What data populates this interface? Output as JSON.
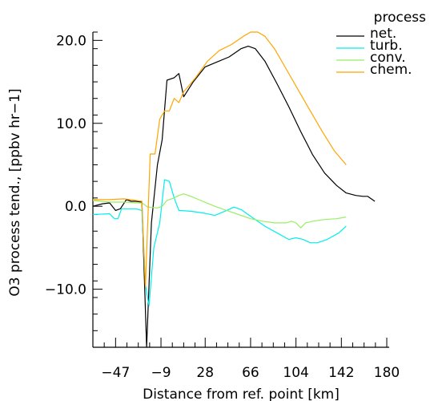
{
  "chart_data": {
    "type": "line",
    "xlabel": "Distance from ref. point [km]",
    "ylabel": "O3 process tend.,   [ppbv hr−1]",
    "xlim": [
      -66,
      182
    ],
    "ylim": [
      -17,
      21
    ],
    "xticks": [
      -47,
      -9,
      28,
      66,
      104,
      142,
      180
    ],
    "yticks": [
      20.0,
      10.0,
      0.0,
      -10.0
    ],
    "ytick_labels": [
      "20.0",
      "10.0",
      "0.0",
      "−10.0"
    ],
    "legend_title": "process",
    "legend_position": "top-right",
    "series": [
      {
        "name": "net.",
        "color": "#000000",
        "points": [
          [
            -66,
            0.0
          ],
          [
            -58,
            0.3
          ],
          [
            -52,
            0.4
          ],
          [
            -47,
            -0.5
          ],
          [
            -43,
            -0.3
          ],
          [
            -38,
            0.8
          ],
          [
            -34,
            0.6
          ],
          [
            -30,
            0.6
          ],
          [
            -25,
            0.5
          ],
          [
            -21,
            -17.0
          ],
          [
            -17,
            -2.0
          ],
          [
            -12,
            5.0
          ],
          [
            -8,
            8.0
          ],
          [
            -4,
            15.2
          ],
          [
            2,
            15.5
          ],
          [
            6,
            16.0
          ],
          [
            10,
            13.2
          ],
          [
            18,
            15.0
          ],
          [
            28,
            16.8
          ],
          [
            38,
            17.4
          ],
          [
            48,
            18.0
          ],
          [
            58,
            19.0
          ],
          [
            64,
            19.3
          ],
          [
            70,
            19.0
          ],
          [
            78,
            17.5
          ],
          [
            88,
            14.8
          ],
          [
            98,
            12.0
          ],
          [
            108,
            9.0
          ],
          [
            118,
            6.2
          ],
          [
            128,
            4.0
          ],
          [
            138,
            2.5
          ],
          [
            146,
            1.6
          ],
          [
            154,
            1.3
          ],
          [
            160,
            1.2
          ],
          [
            164,
            1.2
          ],
          [
            170,
            0.6
          ]
        ]
      },
      {
        "name": "turb.",
        "color": "#00eeee",
        "points": [
          [
            -66,
            -1.0
          ],
          [
            -52,
            -0.9
          ],
          [
            -48,
            -1.5
          ],
          [
            -45,
            -1.5
          ],
          [
            -42,
            -0.3
          ],
          [
            -38,
            -0.3
          ],
          [
            -30,
            -0.3
          ],
          [
            -25,
            -0.5
          ],
          [
            -22,
            -9.5
          ],
          [
            -19,
            -12.0
          ],
          [
            -15,
            -5.0
          ],
          [
            -10,
            -2.0
          ],
          [
            -6,
            3.2
          ],
          [
            -2,
            3.0
          ],
          [
            2,
            1.0
          ],
          [
            6,
            -0.5
          ],
          [
            16,
            -0.6
          ],
          [
            26,
            -0.8
          ],
          [
            36,
            -1.1
          ],
          [
            46,
            -0.5
          ],
          [
            52,
            -0.1
          ],
          [
            58,
            -0.4
          ],
          [
            68,
            -1.4
          ],
          [
            78,
            -2.4
          ],
          [
            88,
            -3.2
          ],
          [
            98,
            -4.0
          ],
          [
            104,
            -3.8
          ],
          [
            110,
            -4.0
          ],
          [
            116,
            -4.4
          ],
          [
            122,
            -4.4
          ],
          [
            130,
            -4.0
          ],
          [
            140,
            -3.2
          ],
          [
            146,
            -2.4
          ]
        ]
      },
      {
        "name": "conv.",
        "color": "#99ee66",
        "points": [
          [
            -66,
            0.7
          ],
          [
            -52,
            0.5
          ],
          [
            -40,
            0.5
          ],
          [
            -30,
            0.4
          ],
          [
            -25,
            0.4
          ],
          [
            -20,
            -0.1
          ],
          [
            -12,
            -0.2
          ],
          [
            -8,
            0.0
          ],
          [
            -4,
            0.7
          ],
          [
            2,
            1.0
          ],
          [
            6,
            1.3
          ],
          [
            10,
            1.5
          ],
          [
            16,
            1.2
          ],
          [
            26,
            0.6
          ],
          [
            36,
            0.0
          ],
          [
            46,
            -0.5
          ],
          [
            56,
            -1.0
          ],
          [
            66,
            -1.5
          ],
          [
            76,
            -1.8
          ],
          [
            86,
            -2.0
          ],
          [
            96,
            -2.0
          ],
          [
            100,
            -1.8
          ],
          [
            104,
            -2.0
          ],
          [
            108,
            -2.6
          ],
          [
            112,
            -2.0
          ],
          [
            118,
            -1.8
          ],
          [
            128,
            -1.6
          ],
          [
            138,
            -1.5
          ],
          [
            146,
            -1.3
          ]
        ]
      },
      {
        "name": "chem.",
        "color": "#ffa500",
        "points": [
          [
            -66,
            0.8
          ],
          [
            -52,
            0.8
          ],
          [
            -40,
            0.9
          ],
          [
            -30,
            0.7
          ],
          [
            -25,
            0.6
          ],
          [
            -22,
            -9.7
          ],
          [
            -18,
            6.3
          ],
          [
            -14,
            6.3
          ],
          [
            -10,
            10.5
          ],
          [
            -6,
            11.5
          ],
          [
            -2,
            11.5
          ],
          [
            2,
            13.0
          ],
          [
            6,
            12.5
          ],
          [
            10,
            13.8
          ],
          [
            20,
            15.5
          ],
          [
            30,
            17.5
          ],
          [
            40,
            18.8
          ],
          [
            50,
            19.5
          ],
          [
            60,
            20.5
          ],
          [
            66,
            21.0
          ],
          [
            72,
            21.0
          ],
          [
            78,
            20.5
          ],
          [
            86,
            19.0
          ],
          [
            96,
            16.5
          ],
          [
            106,
            14.0
          ],
          [
            116,
            11.5
          ],
          [
            126,
            9.0
          ],
          [
            136,
            6.7
          ],
          [
            146,
            5.0
          ]
        ]
      }
    ]
  }
}
